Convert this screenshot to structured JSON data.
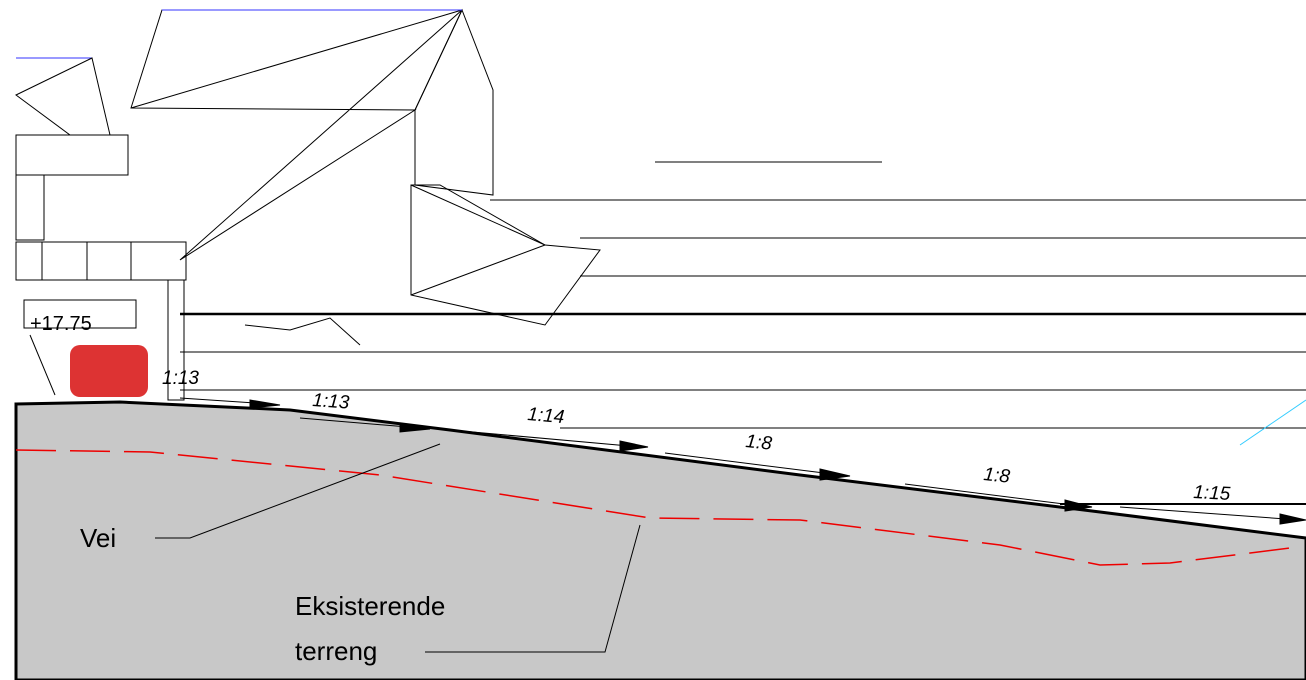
{
  "elevation_label": "+17.75",
  "slopes": [
    "1:13",
    "1:13",
    "1:14",
    "1:8",
    "1:8",
    "1:15"
  ],
  "labels": {
    "road": "Vei",
    "terrain_line1": "Eksisterende",
    "terrain_line2": "terreng"
  }
}
